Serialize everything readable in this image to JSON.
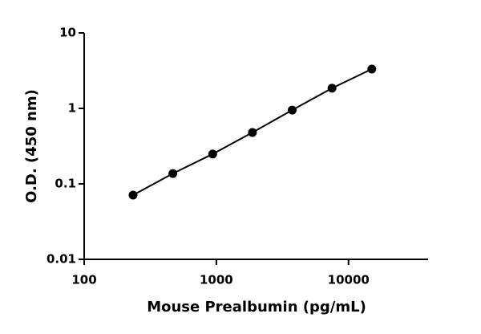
{
  "chart_data": {
    "type": "scatter",
    "x_label": "Mouse Prealbumin (pg/mL)",
    "y_label": "O.D. (450 nm)",
    "x": [
      234.375,
      468.75,
      937.5,
      1875,
      3750,
      7500,
      15000
    ],
    "values": [
      0.071,
      0.137,
      0.248,
      0.48,
      0.95,
      1.85,
      3.32
    ],
    "color": "#000000",
    "xlim": [
      100,
      40000
    ],
    "xticks": [
      100,
      1000,
      10000
    ],
    "ylim": [
      0.01,
      10
    ],
    "yticks": [
      0.01,
      0.1,
      1,
      10
    ],
    "xscale": "log",
    "yscale": "log"
  }
}
